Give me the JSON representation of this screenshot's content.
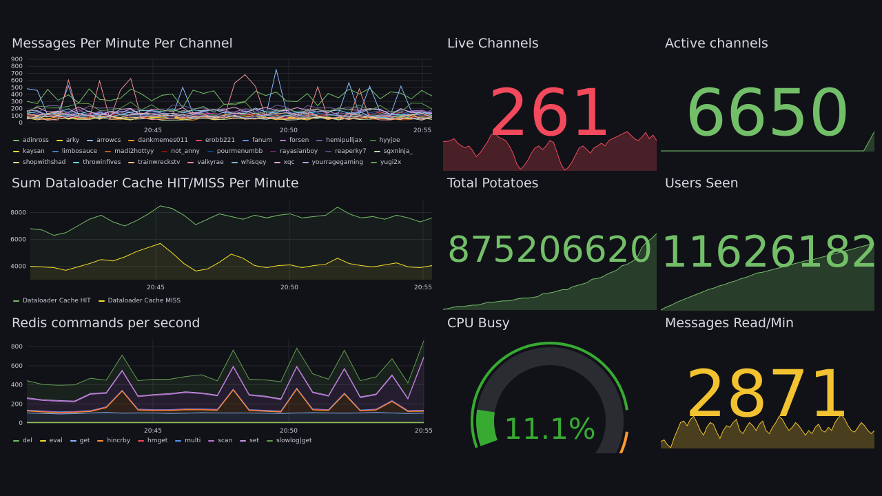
{
  "panels": {
    "messages": {
      "title": "Messages Per Minute Per Channel",
      "chart_data": {
        "type": "line",
        "title": "Messages Per Minute Per Channel",
        "y_ticks": [
          0,
          100,
          200,
          300,
          400,
          500,
          600,
          700,
          800,
          900
        ],
        "ylim": [
          0,
          900
        ],
        "x_ticks": [
          "20:45",
          "20:50",
          "20:55"
        ],
        "legend_position": "bottom",
        "series": [
          {
            "name": "adinross",
            "color": "#73bf69"
          },
          {
            "name": "arky",
            "color": "#fade2a"
          },
          {
            "name": "arrowcs",
            "color": "#8ab8ff"
          },
          {
            "name": "dankmemes011",
            "color": "#ff9830"
          },
          {
            "name": "erobb221",
            "color": "#f2495c"
          },
          {
            "name": "fanum",
            "color": "#5794f2"
          },
          {
            "name": "forsen",
            "color": "#b877d9"
          },
          {
            "name": "hemipulljax",
            "color": "#705da0"
          },
          {
            "name": "hyyjoe",
            "color": "#37872d"
          },
          {
            "name": "kaysan",
            "color": "#fade2a"
          },
          {
            "name": "limbosauce",
            "color": "#447ebc"
          },
          {
            "name": "madi2hottyy",
            "color": "#c15c17"
          },
          {
            "name": "not_anny",
            "color": "#890f02"
          },
          {
            "name": "pourmenumbb",
            "color": "#0a437c"
          },
          {
            "name": "rayasianboy",
            "color": "#6d1f62"
          },
          {
            "name": "reaperky7",
            "color": "#584477"
          },
          {
            "name": "sgxninja_",
            "color": "#b7dbab"
          },
          {
            "name": "shopwithshad",
            "color": "#f4d598"
          },
          {
            "name": "throwinfives",
            "color": "#70dbed"
          },
          {
            "name": "trainwreckstv",
            "color": "#f9ba8f"
          },
          {
            "name": "valkyrae",
            "color": "#f29191"
          },
          {
            "name": "whisqey",
            "color": "#82b5d8"
          },
          {
            "name": "xqc",
            "color": "#e5a8e2"
          },
          {
            "name": "yourragegaming",
            "color": "#aea2e0"
          },
          {
            "name": "yugi2x",
            "color": "#629e51"
          }
        ]
      }
    },
    "dataloader": {
      "title": "Sum Dataloader Cache HIT/MISS Per Minute",
      "chart_data": {
        "type": "area",
        "title": "Sum Dataloader Cache HIT/MISS Per Minute",
        "y_ticks": [
          4000,
          6000,
          8000
        ],
        "ylim": [
          3000,
          9000
        ],
        "x_ticks": [
          "20:45",
          "20:50",
          "20:55"
        ],
        "legend_position": "bottom",
        "series": [
          {
            "name": "Dataloader Cache HIT",
            "color": "#73bf69",
            "values": [
              6800,
              6700,
              6300,
              6500,
              7000,
              7500,
              7800,
              7300,
              7000,
              7400,
              7900,
              8500,
              8300,
              7800,
              7100,
              7500,
              7900,
              7700,
              7500,
              7800,
              7600,
              7800,
              7900,
              7600,
              7700,
              7800,
              8400,
              7900,
              7600,
              7700,
              7500,
              7800,
              7600,
              7300,
              7600
            ]
          },
          {
            "name": "Dataloader Cache MISS",
            "color": "#fade2a",
            "values": [
              4000,
              3950,
              3900,
              3700,
              3950,
              4200,
              4500,
              4400,
              4700,
              5100,
              5400,
              5700,
              5000,
              4200,
              3650,
              3800,
              4300,
              4900,
              4600,
              4050,
              3900,
              4050,
              4100,
              3900,
              4050,
              4150,
              4600,
              4200,
              4050,
              3950,
              4100,
              4250,
              3950,
              3900,
              4050
            ]
          }
        ]
      }
    },
    "redis": {
      "title": "Redis commands per second",
      "chart_data": {
        "type": "area",
        "title": "Redis commands per second",
        "stacked": true,
        "y_ticks": [
          0,
          200,
          400,
          600,
          800
        ],
        "ylim": [
          0,
          880
        ],
        "x_ticks": [
          "20:45",
          "20:50",
          "20:55"
        ],
        "legend_position": "bottom",
        "series": [
          {
            "name": "del",
            "color": "#73bf69",
            "values": [
              2,
              2,
              2,
              2,
              2,
              2,
              2,
              2,
              2,
              2,
              2,
              2,
              2,
              2,
              2,
              2,
              2,
              2,
              2,
              2,
              2,
              2,
              2,
              2,
              2,
              2
            ]
          },
          {
            "name": "eval",
            "color": "#fade2a",
            "values": [
              3,
              3,
              3,
              3,
              3,
              3,
              3,
              3,
              3,
              3,
              3,
              3,
              3,
              3,
              3,
              3,
              3,
              3,
              3,
              3,
              3,
              3,
              3,
              3,
              3,
              3
            ]
          },
          {
            "name": "get",
            "color": "#8ab8ff",
            "values": [
              100,
              95,
              90,
              92,
              100,
              105,
              98,
              100,
              100,
              95,
              98,
              102,
              100,
              100,
              100,
              98,
              95,
              100,
              102,
              100,
              98,
              100,
              105,
              100,
              95,
              98
            ]
          },
          {
            "name": "hincrby",
            "color": "#ff9830",
            "values": [
              20,
              15,
              12,
              14,
              15,
              50,
              230,
              30,
              25,
              30,
              35,
              30,
              28,
              240,
              25,
              20,
              15,
              250,
              30,
              25,
              200,
              20,
              25,
              120,
              20,
              20
            ]
          },
          {
            "name": "hmget",
            "color": "#f2495c",
            "values": [
              5,
              5,
              5,
              5,
              5,
              5,
              5,
              5,
              5,
              5,
              5,
              5,
              5,
              5,
              5,
              5,
              5,
              5,
              5,
              5,
              5,
              5,
              5,
              5,
              5,
              5
            ]
          },
          {
            "name": "multi",
            "color": "#5794f2",
            "values": [
              5,
              5,
              5,
              5,
              5,
              5,
              5,
              5,
              5,
              5,
              5,
              5,
              5,
              5,
              5,
              5,
              5,
              5,
              5,
              5,
              5,
              5,
              5,
              5,
              5,
              5
            ]
          },
          {
            "name": "scan",
            "color": "#b877d9",
            "values": [
              120,
              110,
              110,
              100,
              170,
              140,
              200,
              130,
              150,
              160,
              170,
              160,
              140,
              230,
              150,
              140,
              120,
              220,
              170,
              140,
              250,
              130,
              150,
              260,
              120,
              550
            ]
          },
          {
            "name": "set",
            "color": "#ca95e5",
            "values": [
              8,
              8,
              8,
              8,
              8,
              8,
              8,
              8,
              8,
              8,
              8,
              8,
              8,
              8,
              8,
              8,
              8,
              8,
              8,
              8,
              8,
              8,
              8,
              8,
              8,
              8
            ]
          },
          {
            "name": "slowlog|get",
            "color": "#629e51",
            "values": [
              180,
              160,
              160,
              170,
              160,
              130,
              160,
              160,
              160,
              150,
              160,
              190,
              150,
              170,
              160,
              170,
              180,
              190,
              190,
              170,
              190,
              170,
              180,
              170,
              160,
              170
            ]
          }
        ]
      }
    },
    "live_channels": {
      "title": "Live Channels",
      "value": "261",
      "color": "#f2495c"
    },
    "active_channels": {
      "title": "Active channels",
      "value": "6650",
      "color": "#73bf69"
    },
    "total_potatoes": {
      "title": "Total Potatoes",
      "value": "875206620",
      "color": "#73bf69"
    },
    "users_seen": {
      "title": "Users Seen",
      "value": "11626182",
      "color": "#73bf69"
    },
    "cpu_busy": {
      "title": "CPU Busy",
      "value": "11.1%",
      "percent": 11.1,
      "color": "#37aa32"
    },
    "messages_read": {
      "title": "Messages Read/Min",
      "value": "2871",
      "color": "#f2c230"
    }
  }
}
